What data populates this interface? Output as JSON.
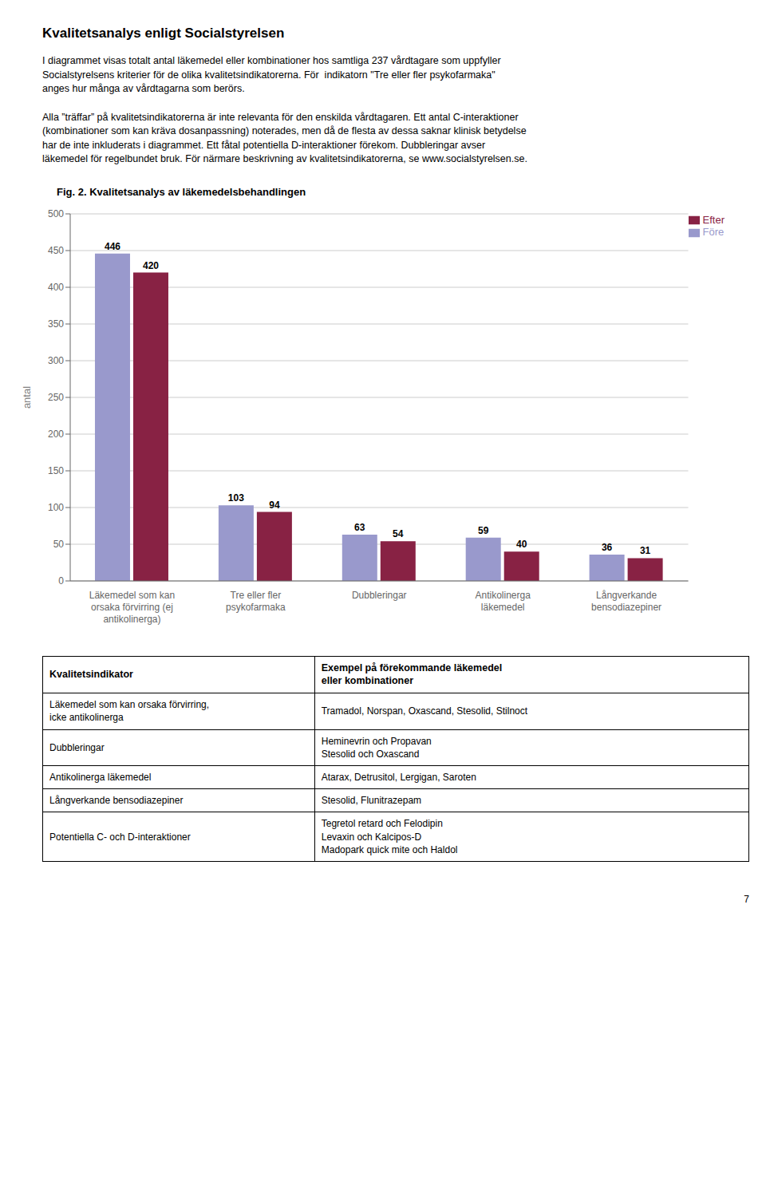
{
  "chart_data": {
    "type": "bar",
    "heading": "Kvalitetsanalys enligt Socialstyrelsen",
    "paragraphs": [
      [
        "I diagrammet visas totalt antal läkemedel eller kombinationer hos samtliga 237 vårdtagare som uppfyller",
        "Socialstyrelsens kriterier för de olika kvalitetsindikatorerna. För  indikatorn \"Tre eller fler psykofarmaka\"",
        "anges hur många av vårdtagarna som berörs."
      ],
      [
        "Alla ”träffar” på kvalitetsindikatorerna är inte relevanta för den enskilda vårdtagaren. Ett antal C-interaktioner",
        "(kombinationer som kan kräva dosanpassning) noterades, men då de flesta av dessa saknar klinisk betydelse",
        "har de inte inkluderats i diagrammet. Ett fåtal potentiella D-interaktioner förekom. Dubbleringar avser",
        "läkemedel för regelbundet bruk. För närmare beskrivning av kvalitetsindikatorerna, se www.socialstyrelsen.se."
      ]
    ],
    "title": "Fig. 2. Kvalitetsanalys av läkemedelsbehandlingen",
    "categories": [
      "Läkemedel som kan\norsaka förvirring (ej\nantikolinerga)",
      "Tre eller fler\npsykofarmaka",
      "Dubbleringar",
      "Antikolinerga\nläkemedel",
      "Långverkande\nbensodiazepiner"
    ],
    "series": [
      {
        "name": "Före",
        "color": "#9999cc",
        "values": [
          446,
          103,
          63,
          59,
          36
        ]
      },
      {
        "name": "Efter",
        "color": "#882244",
        "values": [
          420,
          94,
          54,
          40,
          31
        ]
      }
    ],
    "ylabel": "antal",
    "ylim": [
      0,
      500
    ],
    "yticks": [
      0,
      50,
      100,
      150,
      200,
      250,
      300,
      350,
      400,
      450,
      500
    ],
    "grid": true,
    "legend": "upper right",
    "data_labels": true,
    "table": {
      "headers": [
        "Kvalitetsindikator",
        "Exempel på förekommande läkemedel\neller kombinationer"
      ],
      "rows": [
        [
          "Läkemedel som kan orsaka förvirring,\nicke antikolinerga",
          "Tramadol, Norspan, Oxascand, Stesolid, Stilnoct"
        ],
        [
          "Dubbleringar",
          "Heminevrin och Propavan\nStesolid och Oxascand"
        ],
        [
          "Antikolinerga läkemedel",
          "Atarax, Detrusitol, Lergigan, Saroten"
        ],
        [
          "Långverkande bensodiazepiner",
          "Stesolid, Flunitrazepam"
        ],
        [
          "Potentiella C- och D-interaktioner",
          "Tegretol retard och Felodipin\nLevaxin och Kalcipos-D\nMadopark quick mite och Haldol"
        ]
      ]
    },
    "page_number": "7"
  }
}
